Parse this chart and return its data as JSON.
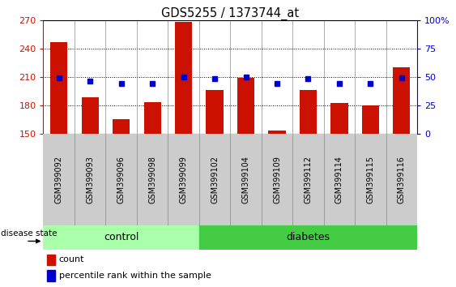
{
  "title": "GDS5255 / 1373744_at",
  "samples": [
    "GSM399092",
    "GSM399093",
    "GSM399096",
    "GSM399098",
    "GSM399099",
    "GSM399102",
    "GSM399104",
    "GSM399109",
    "GSM399112",
    "GSM399114",
    "GSM399115",
    "GSM399116"
  ],
  "counts": [
    247,
    188,
    165,
    183,
    268,
    196,
    209,
    153,
    196,
    182,
    180,
    220
  ],
  "percentiles": [
    49,
    46,
    44,
    44,
    50,
    48,
    50,
    44,
    48,
    44,
    44,
    49
  ],
  "y_min": 150,
  "y_max": 270,
  "y_ticks": [
    150,
    180,
    210,
    240,
    270
  ],
  "y2_ticks": [
    0,
    25,
    50,
    75,
    100
  ],
  "bar_color": "#cc1100",
  "dot_color": "#0000cc",
  "n_control": 5,
  "n_diabetes": 7,
  "control_color": "#aaffaa",
  "diabetes_color": "#44cc44",
  "group_label_control": "control",
  "group_label_diabetes": "diabetes",
  "disease_state_label": "disease state",
  "legend_count": "count",
  "legend_percentile": "percentile rank within the sample",
  "bar_width": 0.55,
  "separator_color": "#888888",
  "label_bg_color": "#cccccc"
}
